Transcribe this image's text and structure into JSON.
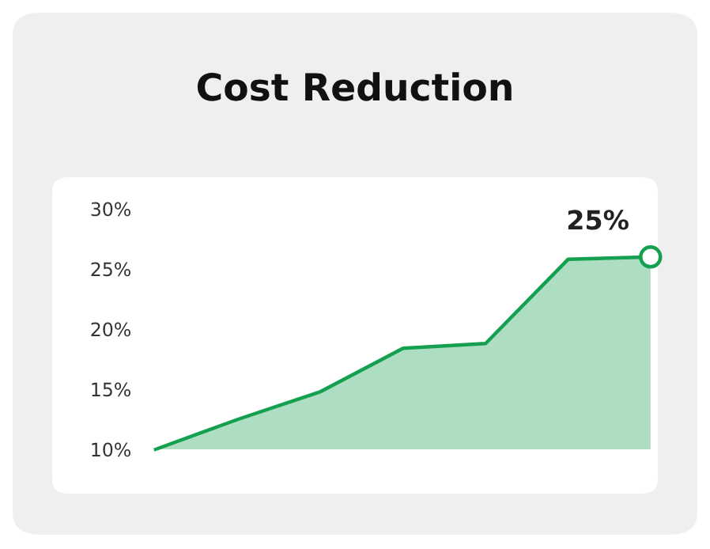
{
  "chart_data": {
    "type": "area",
    "title": "Cost Reduction",
    "categories": [
      null,
      null,
      null,
      null,
      null,
      null,
      null
    ],
    "series": [
      {
        "color": "#15a050",
        "values": [
          10,
          12.5,
          14.8,
          18.4,
          18.8,
          25.8,
          26.0
        ]
      }
    ],
    "ylim": [
      10,
      30
    ],
    "yticks": [
      {
        "value": 10,
        "label": "10%"
      },
      {
        "value": 15,
        "label": "15%"
      },
      {
        "value": 20,
        "label": "20%"
      },
      {
        "value": 25,
        "label": "25%"
      },
      {
        "value": 30,
        "label": "30%"
      }
    ],
    "annotations": [
      "25%"
    ],
    "legend": false
  }
}
